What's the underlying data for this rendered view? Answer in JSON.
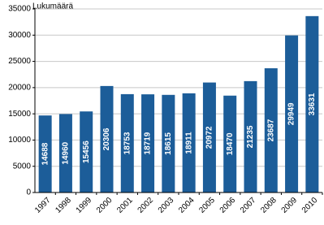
{
  "chart_data": {
    "type": "bar",
    "y_label": "Lukumäärä",
    "categories": [
      "1997",
      "1998",
      "1999",
      "2000",
      "2001",
      "2002",
      "2003",
      "2004",
      "2005",
      "2006",
      "2007",
      "2008",
      "2009",
      "2010"
    ],
    "values": [
      14688,
      14960,
      15456,
      20306,
      18753,
      18719,
      18615,
      18911,
      20972,
      18470,
      21235,
      23687,
      29949,
      33631
    ],
    "color": "#1c5d99",
    "ylim": [
      0,
      35000
    ],
    "yticks": [
      0,
      5000,
      10000,
      15000,
      20000,
      25000,
      30000,
      35000
    ],
    "grid": true
  }
}
